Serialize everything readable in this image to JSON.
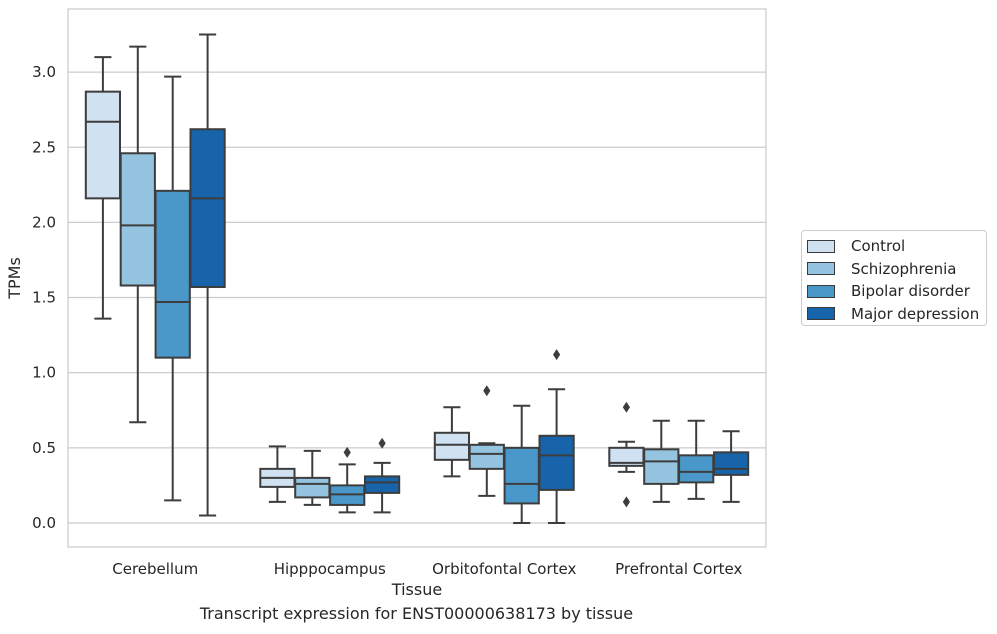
{
  "chart_data": {
    "type": "box",
    "caption": "Transcript expression for ENST00000638173 by tissue",
    "xlabel": "Tissue",
    "ylabel": "TPMs",
    "ylim": [
      -0.16,
      3.42
    ],
    "yticks": [
      0.0,
      0.5,
      1.0,
      1.5,
      2.0,
      2.5,
      3.0
    ],
    "grid": true,
    "legend_position": "right",
    "categories": [
      "Cerebellum",
      "Hipppocampus",
      "Orbitofontal Cortex",
      "Prefrontal Cortex"
    ],
    "series": [
      {
        "name": "Control",
        "color": "#d0e1f2",
        "boxes": [
          {
            "whislo": 1.36,
            "q1": 2.16,
            "med": 2.67,
            "q3": 2.87,
            "whishi": 3.1,
            "fliers": []
          },
          {
            "whislo": 0.14,
            "q1": 0.24,
            "med": 0.3,
            "q3": 0.36,
            "whishi": 0.51,
            "fliers": []
          },
          {
            "whislo": 0.31,
            "q1": 0.42,
            "med": 0.52,
            "q3": 0.6,
            "whishi": 0.77,
            "fliers": []
          },
          {
            "whislo": 0.34,
            "q1": 0.38,
            "med": 0.4,
            "q3": 0.5,
            "whishi": 0.54,
            "fliers": [
              0.77,
              0.14
            ]
          }
        ]
      },
      {
        "name": "Schizophrenia",
        "color": "#94c4df",
        "boxes": [
          {
            "whislo": 0.67,
            "q1": 1.58,
            "med": 1.98,
            "q3": 2.46,
            "whishi": 3.17,
            "fliers": []
          },
          {
            "whislo": 0.12,
            "q1": 0.17,
            "med": 0.26,
            "q3": 0.3,
            "whishi": 0.48,
            "fliers": []
          },
          {
            "whislo": 0.18,
            "q1": 0.36,
            "med": 0.46,
            "q3": 0.52,
            "whishi": 0.53,
            "fliers": [
              0.88
            ]
          },
          {
            "whislo": 0.14,
            "q1": 0.26,
            "med": 0.41,
            "q3": 0.49,
            "whishi": 0.68,
            "fliers": []
          }
        ]
      },
      {
        "name": "Bipolar disorder",
        "color": "#4a98c9",
        "boxes": [
          {
            "whislo": 0.15,
            "q1": 1.1,
            "med": 1.47,
            "q3": 2.21,
            "whishi": 2.97,
            "fliers": []
          },
          {
            "whislo": 0.07,
            "q1": 0.12,
            "med": 0.19,
            "q3": 0.25,
            "whishi": 0.39,
            "fliers": [
              0.47
            ]
          },
          {
            "whislo": 0.0,
            "q1": 0.13,
            "med": 0.26,
            "q3": 0.5,
            "whishi": 0.78,
            "fliers": []
          },
          {
            "whislo": 0.16,
            "q1": 0.27,
            "med": 0.34,
            "q3": 0.45,
            "whishi": 0.68,
            "fliers": []
          }
        ]
      },
      {
        "name": "Major depression",
        "color": "#1764ab",
        "boxes": [
          {
            "whislo": 0.05,
            "q1": 1.57,
            "med": 2.16,
            "q3": 2.62,
            "whishi": 3.25,
            "fliers": []
          },
          {
            "whislo": 0.07,
            "q1": 0.2,
            "med": 0.27,
            "q3": 0.31,
            "whishi": 0.4,
            "fliers": [
              0.53
            ]
          },
          {
            "whislo": 0.0,
            "q1": 0.22,
            "med": 0.45,
            "q3": 0.58,
            "whishi": 0.89,
            "fliers": [
              1.12
            ]
          },
          {
            "whislo": 0.14,
            "q1": 0.32,
            "med": 0.36,
            "q3": 0.47,
            "whishi": 0.61,
            "fliers": []
          }
        ]
      }
    ]
  }
}
